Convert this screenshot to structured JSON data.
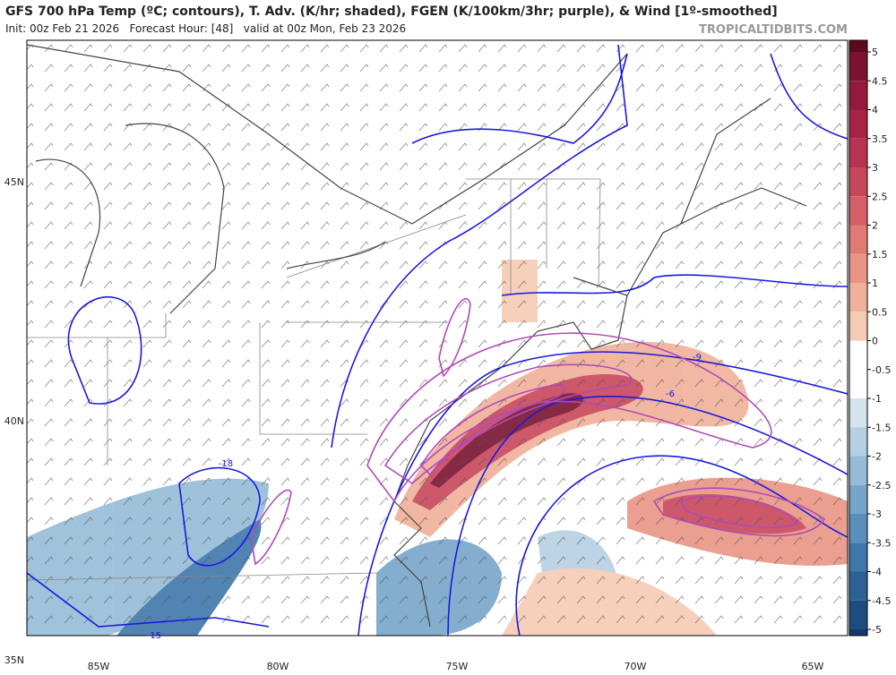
{
  "header": {
    "title": "GFS 700 hPa Temp (ºC; contours), T. Adv. (K/hr; shaded), FGEN (K/100km/3hr; purple), & Wind [1º-smoothed]",
    "subtitle": "Init: 00z Feb 21 2026   Forecast Hour: [48]   valid at 00z Mon, Feb 23 2026",
    "watermark": "TROPICALTIDBITS.COM"
  },
  "map": {
    "latitude_labels": [
      "45N",
      "40N",
      "35N"
    ],
    "longitude_labels": [
      "85W",
      "80W",
      "75W",
      "70W",
      "65W"
    ],
    "contour_labels": [
      -9,
      -6,
      -18,
      -15
    ]
  },
  "colorbar": {
    "ticks": [
      5,
      4.5,
      4,
      3.5,
      3,
      2.5,
      2,
      1.5,
      1,
      0.5,
      0,
      -0.5,
      -1,
      -1.5,
      -2,
      -2.5,
      -3,
      -3.5,
      -4,
      -4.5,
      -5
    ],
    "colors": [
      "#5c0a1e",
      "#7a1230",
      "#931a3c",
      "#a82446",
      "#b8334f",
      "#c7475a",
      "#d45f66",
      "#df7a74",
      "#e89585",
      "#f0b09a",
      "#f6cbb4",
      "#ffffff",
      "#ffffff",
      "#d4e4ef",
      "#b5d0e3",
      "#96bbd6",
      "#77a5c9",
      "#5a8ebb",
      "#3f77aa",
      "#2c6196",
      "#1d4c80",
      "#123a6a"
    ]
  }
}
